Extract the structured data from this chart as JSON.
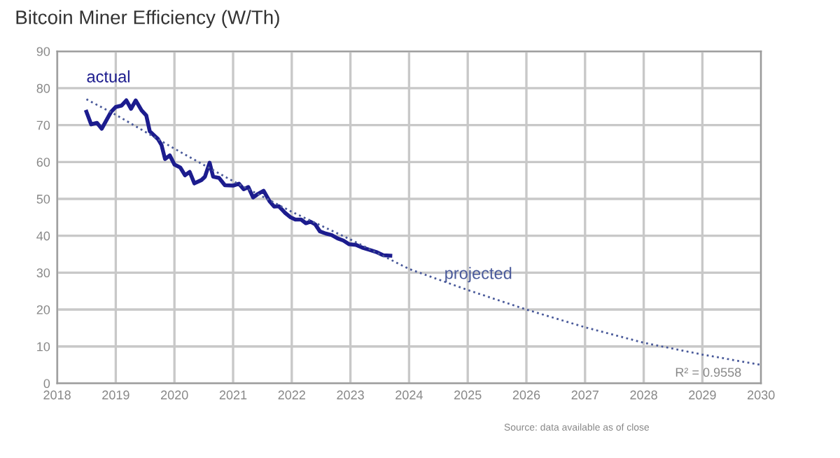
{
  "chart_data": {
    "type": "line",
    "title": "Bitcoin Miner Efficiency (W/Th)",
    "xlim": [
      2018,
      2030
    ],
    "xticks": [
      2018,
      2019,
      2020,
      2021,
      2022,
      2023,
      2024,
      2025,
      2026,
      2027,
      2028,
      2029,
      2030
    ],
    "ylim": [
      0,
      90
    ],
    "yticks": [
      0,
      10,
      20,
      30,
      40,
      50,
      60,
      70,
      80,
      90
    ],
    "grid": true,
    "series": [
      {
        "name": "actual",
        "color": "#1c1c8e",
        "line_style": "solid",
        "x": [
          2018.5,
          2018.58,
          2018.68,
          2018.76,
          2018.92,
          2019.0,
          2019.1,
          2019.18,
          2019.26,
          2019.34,
          2019.44,
          2019.52,
          2019.58,
          2019.72,
          2019.78,
          2019.84,
          2019.92,
          2020.0,
          2020.1,
          2020.18,
          2020.26,
          2020.34,
          2020.46,
          2020.52,
          2020.6,
          2020.66,
          2020.76,
          2020.86,
          2021.0,
          2021.1,
          2021.18,
          2021.26,
          2021.34,
          2021.42,
          2021.52,
          2021.62,
          2021.7,
          2021.78,
          2021.88,
          2021.98,
          2022.06,
          2022.16,
          2022.24,
          2022.32,
          2022.4,
          2022.48,
          2022.58,
          2022.68,
          2022.78,
          2022.88,
          2022.98,
          2023.1,
          2023.2,
          2023.32,
          2023.44,
          2023.56,
          2023.68
        ],
        "values": [
          73.6,
          70.2,
          70.6,
          69.0,
          73.6,
          74.9,
          75.3,
          76.7,
          74.4,
          76.7,
          74.0,
          72.6,
          68.3,
          66.2,
          64.6,
          60.8,
          61.8,
          59.3,
          58.5,
          56.4,
          57.3,
          54.2,
          55.1,
          56.0,
          59.8,
          56.0,
          55.7,
          53.7,
          53.6,
          54.1,
          52.6,
          53.2,
          50.4,
          51.3,
          52.2,
          49.4,
          47.9,
          48.0,
          46.3,
          45.0,
          44.4,
          44.4,
          43.4,
          43.8,
          43.1,
          41.2,
          40.6,
          40.2,
          39.3,
          38.7,
          37.7,
          37.5,
          36.8,
          36.2,
          35.6,
          34.7,
          34.6
        ]
      },
      {
        "name": "projected",
        "color": "#4a5a9a",
        "line_style": "dotted",
        "x": [
          2018.5,
          2019,
          2020,
          2021,
          2022,
          2023,
          2024,
          2025,
          2026,
          2027,
          2028,
          2029,
          2030
        ],
        "values": [
          77.0,
          72.8,
          63.6,
          54.8,
          46.5,
          39.0,
          31.0,
          25.3,
          20.0,
          15.2,
          11.0,
          7.8,
          5.0
        ]
      }
    ],
    "annotations": [
      {
        "text": "R² = 0.9558",
        "x": 2029.5,
        "y": 5
      },
      "Source: data available as of close"
    ]
  }
}
